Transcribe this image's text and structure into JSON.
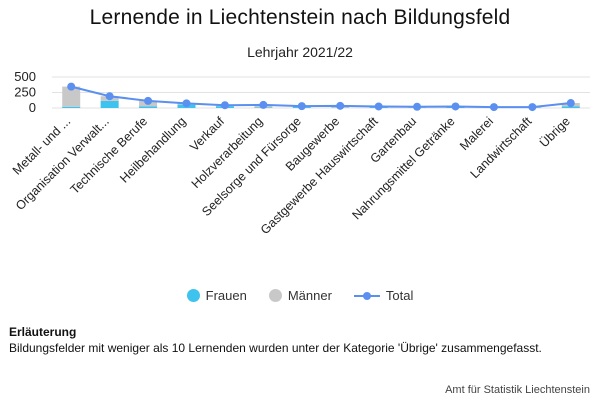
{
  "chart_data": {
    "type": "bar",
    "title": "Lernende in Liechtenstein nach Bildungsfeld",
    "subtitle": "Lehrjahr 2021/22",
    "categories": [
      "Metall- und ...",
      "Organisation Verwalt...",
      "Technische Berufe",
      "Heilbehandlung",
      "Verkauf",
      "Holzverarbeitung",
      "Seelsorge und Fürsorge",
      "Baugewerbe",
      "Gastgewerbe Hauswirtschaft",
      "Gartenbau",
      "Nahrungsmittel Getränke",
      "Malerei",
      "Landwirtschaft",
      "Übrige"
    ],
    "series": [
      {
        "name": "Frauen",
        "type": "bar",
        "stack": "total",
        "color": "#3ec3ef",
        "values": [
          20,
          115,
          25,
          55,
          30,
          10,
          25,
          5,
          15,
          5,
          15,
          10,
          5,
          25
        ]
      },
      {
        "name": "Männer",
        "type": "bar",
        "stack": "total",
        "color": "#c8c8c8",
        "values": [
          325,
          75,
          90,
          20,
          15,
          40,
          5,
          30,
          10,
          15,
          10,
          5,
          10,
          55
        ]
      },
      {
        "name": "Total",
        "type": "line",
        "color": "#5b8ff0",
        "values": [
          345,
          190,
          115,
          75,
          45,
          50,
          30,
          35,
          25,
          20,
          25,
          15,
          15,
          80
        ]
      }
    ],
    "y_ticks": [
      0,
      250,
      500
    ],
    "ylim": [
      0,
      500
    ],
    "grid": true,
    "legend_position": "bottom"
  },
  "legend": [
    {
      "label": "Frauen",
      "kind": "dot",
      "color": "#3ec3ef"
    },
    {
      "label": "Männer",
      "kind": "dot",
      "color": "#c8c8c8"
    },
    {
      "label": "Total",
      "kind": "line",
      "color": "#5b8ff0"
    }
  ],
  "note": {
    "heading": "Erläuterung",
    "text": "Bildungsfelder mit weniger als 10 Lernenden wurden unter der Kategorie 'Übrige' zusammengefasst."
  },
  "source": "Amt für Statistik Liechtenstein"
}
